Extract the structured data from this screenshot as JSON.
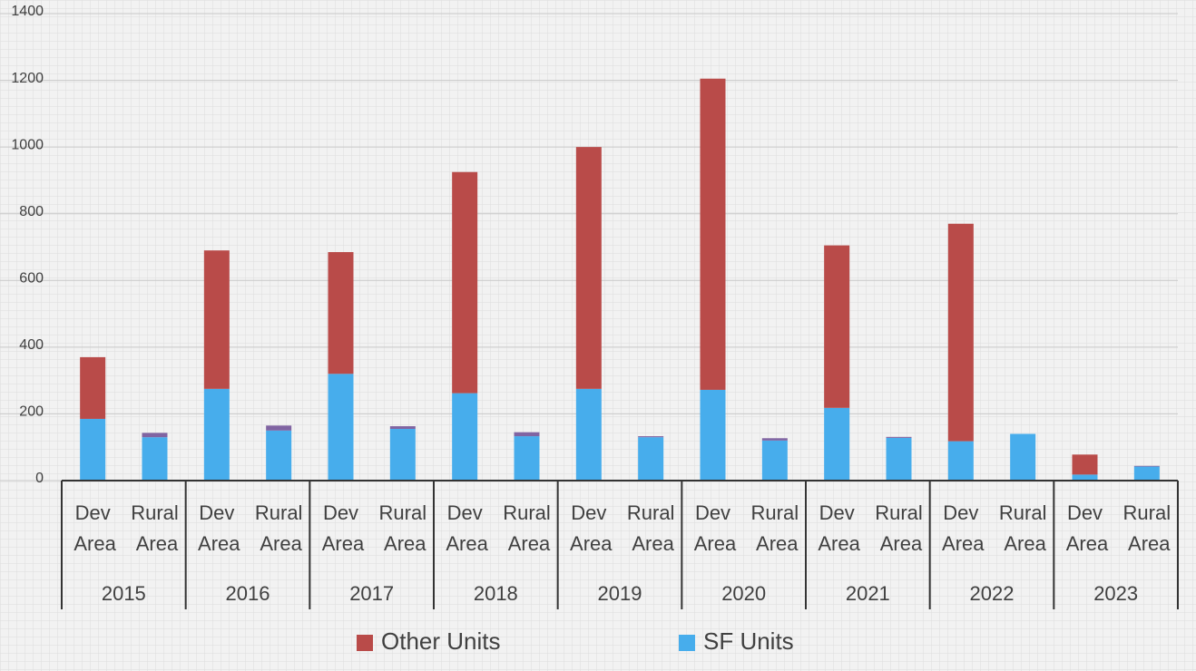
{
  "chart_data": {
    "type": "stacked-bar",
    "groups": [
      "2015",
      "2016",
      "2017",
      "2018",
      "2019",
      "2020",
      "2021",
      "2022",
      "2023"
    ],
    "categories": [
      "Dev Area",
      "Rural Area",
      "Dev Area",
      "Rural Area",
      "Dev Area",
      "Rural Area",
      "Dev Area",
      "Rural Area",
      "Dev Area",
      "Rural Area",
      "Dev Area",
      "Rural Area",
      "Dev Area",
      "Rural Area",
      "Dev Area",
      "Rural Area",
      "Dev Area",
      "Rural Area"
    ],
    "series": [
      {
        "name": "Other Units",
        "color": "#b94b49",
        "values": [
          185,
          0,
          415,
          0,
          365,
          0,
          663,
          0,
          725,
          0,
          933,
          0,
          487,
          0,
          652,
          0,
          60,
          0
        ]
      },
      {
        "color": "#8064a2",
        "values": [
          0,
          13,
          0,
          15,
          0,
          8,
          0,
          12,
          0,
          3,
          0,
          7,
          0,
          3,
          0,
          0,
          0,
          2
        ]
      },
      {
        "name": "SF Units",
        "color": "#47adec",
        "values": [
          185,
          130,
          275,
          150,
          320,
          155,
          262,
          133,
          275,
          130,
          272,
          120,
          218,
          128,
          118,
          140,
          18,
          42
        ]
      }
    ],
    "ylim": [
      0,
      1400
    ],
    "yticks": [
      0,
      200,
      400,
      600,
      800,
      1000,
      1200,
      1400
    ],
    "grid": true
  }
}
